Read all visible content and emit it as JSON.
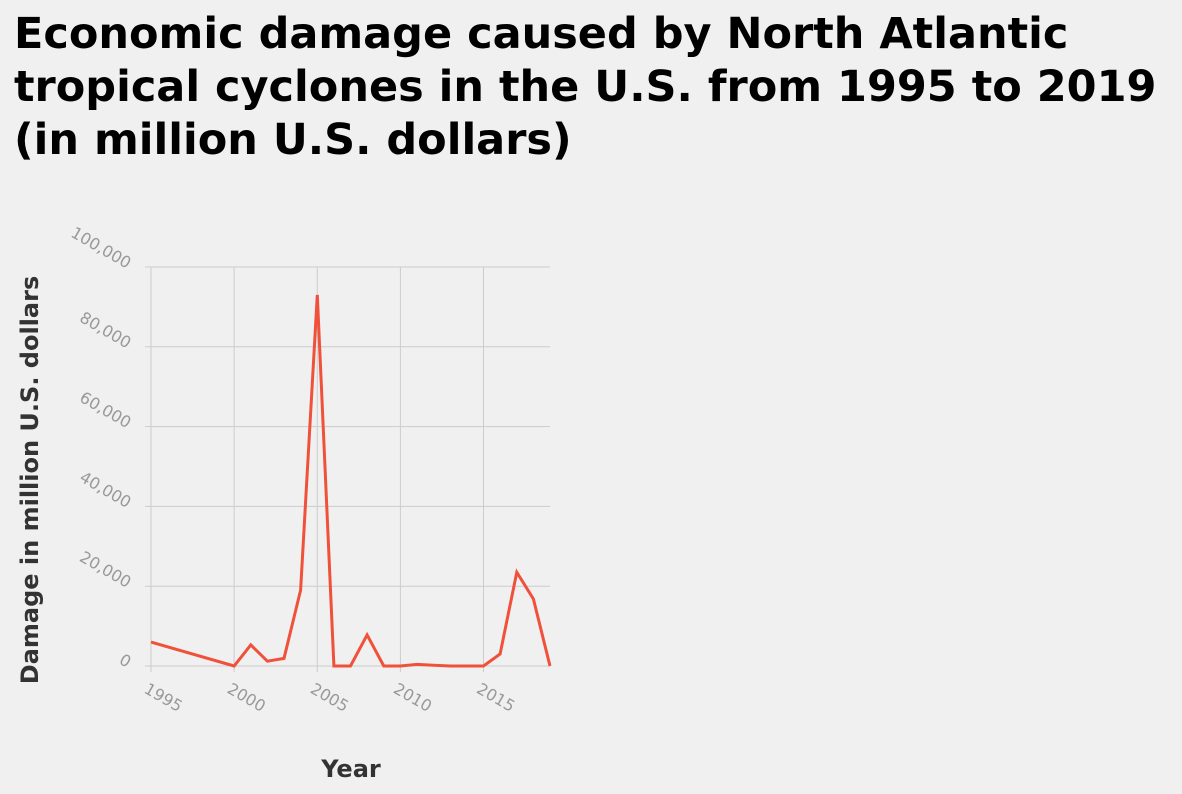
{
  "chart_data": {
    "type": "line",
    "title": "Economic damage caused by North Atlantic tropical cyclones in the U.S. from 1995 to 2019 (in million U.S. dollars)",
    "xlabel": "Year",
    "ylabel": "Damage in million U.S. dollars",
    "xlim": [
      1995,
      2019
    ],
    "ylim": [
      0,
      100000
    ],
    "x_ticks": [
      "1995",
      "2000",
      "2005",
      "2010",
      "2015"
    ],
    "y_ticks": [
      "0",
      "20,000",
      "40,000",
      "60,000",
      "80,000",
      "100,000"
    ],
    "grid": true,
    "line_color": "#f0513a",
    "series": [
      {
        "x": [
          1995,
          2000,
          2001,
          2002,
          2003,
          2004,
          2005,
          2006,
          2007,
          2008,
          2009,
          2010,
          2011,
          2012,
          2013,
          2014,
          2015,
          2016,
          2017,
          2018,
          2019
        ],
        "values": [
          6000,
          0,
          5300,
          1200,
          1900,
          19000,
          93000,
          0,
          0,
          7800,
          0,
          0,
          400,
          200,
          0,
          0,
          0,
          3000,
          23500,
          16800,
          0
        ]
      }
    ]
  }
}
